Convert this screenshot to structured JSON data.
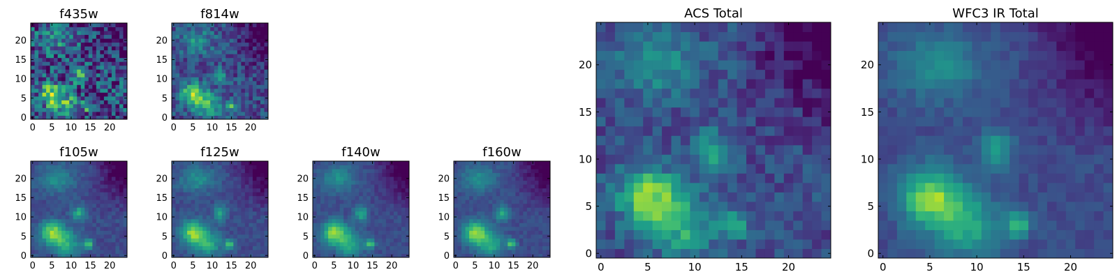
{
  "colormap": "viridis",
  "colors": {
    "frame": "#000000",
    "background": "#ffffff"
  },
  "chart_data": [
    {
      "type": "heatmap",
      "title": "f435w",
      "shape": [
        25,
        25
      ],
      "xticks": [
        0,
        5,
        10,
        15,
        20
      ],
      "yticks": [
        0,
        5,
        10,
        15,
        20
      ],
      "texture": 0.55,
      "ylim": [
        0,
        24
      ],
      "xlim": [
        0,
        24
      ]
    },
    {
      "type": "heatmap",
      "title": "f814w",
      "shape": [
        25,
        25
      ],
      "xticks": [
        0,
        5,
        10,
        15,
        20
      ],
      "yticks": [
        0,
        5,
        10,
        15,
        20
      ],
      "texture": 0.3,
      "ylim": [
        0,
        24
      ],
      "xlim": [
        0,
        24
      ]
    },
    {
      "type": "heatmap",
      "title": "f105w",
      "shape": [
        25,
        25
      ],
      "xticks": [
        0,
        5,
        10,
        15,
        20
      ],
      "yticks": [
        0,
        5,
        10,
        15,
        20
      ],
      "texture": 0.12,
      "ylim": [
        0,
        24
      ],
      "xlim": [
        0,
        24
      ]
    },
    {
      "type": "heatmap",
      "title": "f125w",
      "shape": [
        25,
        25
      ],
      "xticks": [
        0,
        5,
        10,
        15,
        20
      ],
      "yticks": [
        0,
        5,
        10,
        15,
        20
      ],
      "texture": 0.12,
      "ylim": [
        0,
        24
      ],
      "xlim": [
        0,
        24
      ]
    },
    {
      "type": "heatmap",
      "title": "f140w",
      "shape": [
        25,
        25
      ],
      "xticks": [
        0,
        5,
        10,
        15,
        20
      ],
      "yticks": [
        0,
        5,
        10,
        15,
        20
      ],
      "texture": 0.1,
      "ylim": [
        0,
        24
      ],
      "xlim": [
        0,
        24
      ]
    },
    {
      "type": "heatmap",
      "title": "f160w",
      "shape": [
        25,
        25
      ],
      "xticks": [
        0,
        5,
        10,
        15,
        20
      ],
      "yticks": [
        0,
        5,
        10,
        15,
        20
      ],
      "texture": 0.1,
      "ylim": [
        0,
        24
      ],
      "xlim": [
        0,
        24
      ]
    },
    {
      "type": "heatmap",
      "title": "ACS Total",
      "shape": [
        25,
        25
      ],
      "xticks": [
        0,
        5,
        10,
        15,
        20
      ],
      "yticks": [
        0,
        5,
        10,
        15,
        20
      ],
      "texture": 0.22,
      "ylim": [
        0,
        24
      ],
      "xlim": [
        0,
        24
      ]
    },
    {
      "type": "heatmap",
      "title": "WFC3 IR Total",
      "shape": [
        25,
        25
      ],
      "xticks": [
        0,
        5,
        10,
        15,
        20
      ],
      "yticks": [
        0,
        5,
        10,
        15,
        20
      ],
      "texture": 0.1,
      "ylim": [
        0,
        24
      ],
      "xlim": [
        0,
        24
      ]
    }
  ]
}
